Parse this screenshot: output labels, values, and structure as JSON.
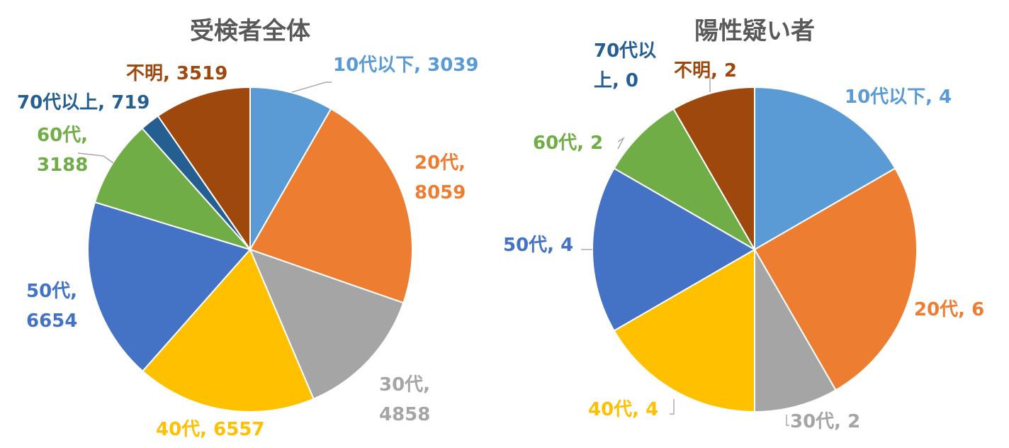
{
  "chart_data": [
    {
      "type": "pie",
      "title": "受検者全体",
      "categories": [
        "10代以下",
        "20代",
        "30代",
        "40代",
        "50代",
        "60代",
        "70代以上",
        "不明"
      ],
      "values": [
        3039,
        8059,
        4858,
        6557,
        6654,
        3188,
        719,
        3519
      ],
      "labels": [
        [
          "10代以下, 3039"
        ],
        [
          "20代,",
          "8059"
        ],
        [
          "30代,",
          "4858"
        ],
        [
          "40代, 6557"
        ],
        [
          "50代,",
          "6654"
        ],
        [
          "60代,",
          "3188"
        ],
        [
          "70代以上, 719"
        ],
        [
          "不明, 3519"
        ]
      ],
      "colors": [
        "#5b9bd5",
        "#ed7d31",
        "#a5a5a5",
        "#ffc000",
        "#4472c4",
        "#70ad47",
        "#255e91",
        "#9e480e"
      ]
    },
    {
      "type": "pie",
      "title": "陽性疑い者",
      "categories": [
        "10代以下",
        "20代",
        "30代",
        "40代",
        "50代",
        "60代",
        "70代以上",
        "不明"
      ],
      "values": [
        4,
        6,
        2,
        4,
        4,
        2,
        0,
        2
      ],
      "labels": [
        [
          "10代以下, 4"
        ],
        [
          "20代, 6"
        ],
        [
          "30代, 2"
        ],
        [
          "40代, 4"
        ],
        [
          "50代, 4"
        ],
        [
          "60代, 2"
        ],
        [
          "70代以",
          "上, 0"
        ],
        [
          "不明, 2"
        ]
      ],
      "colors": [
        "#5b9bd5",
        "#ed7d31",
        "#a5a5a5",
        "#ffc000",
        "#4472c4",
        "#70ad47",
        "#255e91",
        "#9e480e"
      ]
    }
  ]
}
